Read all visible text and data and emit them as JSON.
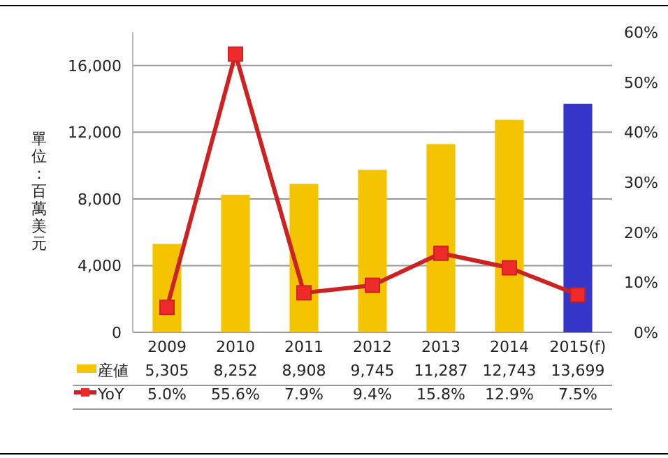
{
  "chart_data": {
    "type": "bar",
    "ylabel": "單位：百萬美元",
    "categories": [
      "2009",
      "2010",
      "2011",
      "2012",
      "2013",
      "2014",
      "2015(f)"
    ],
    "series": [
      {
        "name": "産値",
        "colors": [
          "#f5c400",
          "#f5c400",
          "#f5c400",
          "#f5c400",
          "#f5c400",
          "#f5c400",
          "#3535c8"
        ],
        "values": [
          5305,
          8252,
          8908,
          9745,
          11287,
          12743,
          13699
        ],
        "value_labels": [
          "5,305",
          "8,252",
          "8,908",
          "9,745",
          "11,287",
          "12,743",
          "13,699"
        ]
      },
      {
        "name": "YoY",
        "type": "line",
        "axis": "y2",
        "color": "#cc2222",
        "values": [
          5.0,
          55.6,
          7.9,
          9.4,
          15.8,
          12.9,
          7.5
        ],
        "value_labels": [
          "5.0%",
          "55.6%",
          "7.9%",
          "9.4%",
          "15.8%",
          "12.9%",
          "7.5%"
        ]
      }
    ],
    "marker": "square",
    "grid": "y",
    "legend": "bottom",
    "ylim": [
      0,
      18000
    ],
    "yticks": [
      {
        "value": 0,
        "label": "0"
      },
      {
        "value": 4000,
        "label": "4,000"
      },
      {
        "value": 8000,
        "label": "8,000"
      },
      {
        "value": 12000,
        "label": "12,000"
      },
      {
        "value": 16000,
        "label": "16,000"
      }
    ],
    "y2lim": [
      0,
      60
    ],
    "y2ticks": [
      {
        "value": 0,
        "label": "0%"
      },
      {
        "value": 10,
        "label": "10%"
      },
      {
        "value": 20,
        "label": "20%"
      },
      {
        "value": 30,
        "label": "30%"
      },
      {
        "value": 40,
        "label": "40%"
      },
      {
        "value": 50,
        "label": "50%"
      },
      {
        "value": 60,
        "label": "60%"
      }
    ]
  }
}
